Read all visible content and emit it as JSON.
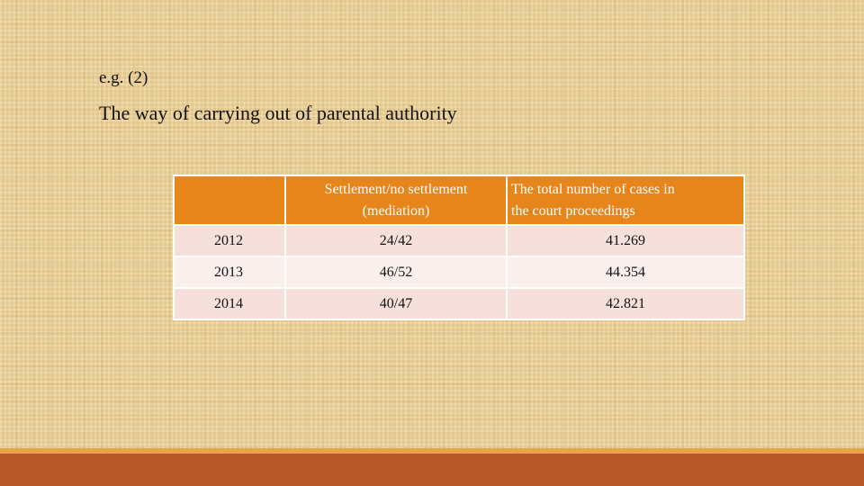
{
  "slide": {
    "heading": "e.g. (2)",
    "subtitle": "The way of carrying out of parental authority"
  },
  "table": {
    "header": {
      "col0": "",
      "col1_line1": "Settlement/no settlement",
      "col1_line2": "(mediation)",
      "col2_line1": "The total number of cases in",
      "col2_line2": "the court proceedings"
    },
    "rows": [
      {
        "year": "2012",
        "settlement": "24/42",
        "total": "41.269"
      },
      {
        "year": "2013",
        "settlement": "46/52",
        "total": "44.354"
      },
      {
        "year": "2014",
        "settlement": "40/47",
        "total": "42.821"
      }
    ]
  },
  "colors": {
    "header_fill": "#e5851a",
    "row_fill_a": "#f6e0dc",
    "row_fill_b": "#fbefec",
    "bottom_bar": "#b8582a",
    "bottom_stripe": "#e9a447"
  }
}
